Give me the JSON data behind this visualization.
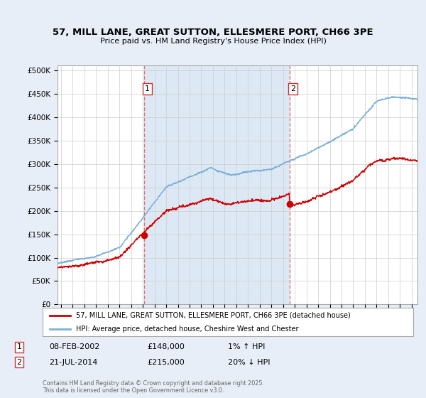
{
  "title_line1": "57, MILL LANE, GREAT SUTTON, ELLESMERE PORT, CH66 3PE",
  "title_line2": "Price paid vs. HM Land Registry's House Price Index (HPI)",
  "ylabel_ticks": [
    "£0",
    "£50K",
    "£100K",
    "£150K",
    "£200K",
    "£250K",
    "£300K",
    "£350K",
    "£400K",
    "£450K",
    "£500K"
  ],
  "ytick_values": [
    0,
    50000,
    100000,
    150000,
    200000,
    250000,
    300000,
    350000,
    400000,
    450000,
    500000
  ],
  "ylim": [
    0,
    510000
  ],
  "xlim_start": 1994.7,
  "xlim_end": 2025.5,
  "hpi_color": "#7ab0d8",
  "price_color": "#cc0000",
  "dashed_color": "#dd6666",
  "shade_color": "#dde8f5",
  "background_color": "#e8eef8",
  "plot_bg_color": "#ffffff",
  "grid_color": "#cccccc",
  "sale1_x": 2002.1,
  "sale1_y": 148000,
  "sale1_label": "1",
  "sale1_date": "08-FEB-2002",
  "sale1_price": "£148,000",
  "sale1_hpi": "1% ↑ HPI",
  "sale2_x": 2014.55,
  "sale2_y": 215000,
  "sale2_label": "2",
  "sale2_date": "21-JUL-2014",
  "sale2_price": "£215,000",
  "sale2_hpi": "20% ↓ HPI",
  "legend_label1": "57, MILL LANE, GREAT SUTTON, ELLESMERE PORT, CH66 3PE (detached house)",
  "legend_label2": "HPI: Average price, detached house, Cheshire West and Chester",
  "footer": "Contains HM Land Registry data © Crown copyright and database right 2025.\nThis data is licensed under the Open Government Licence v3.0."
}
